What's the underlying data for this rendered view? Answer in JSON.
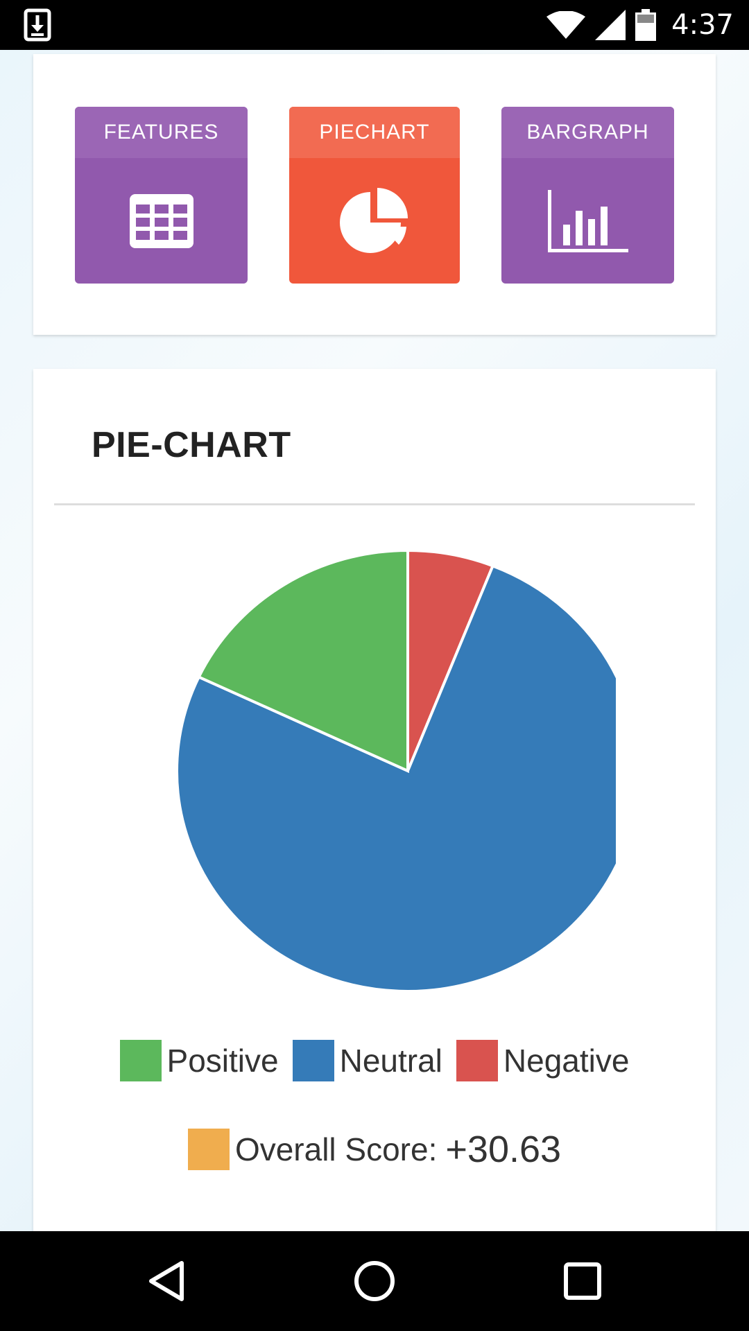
{
  "status_bar": {
    "time": "4:37",
    "icons": [
      "download-icon",
      "wifi-icon",
      "cell-signal-icon",
      "battery-icon"
    ]
  },
  "nav_tiles": [
    {
      "label": "FEATURES",
      "icon": "table-grid-icon",
      "color": "#9159ad",
      "header_color": "#9b66b5"
    },
    {
      "label": "PIECHART",
      "icon": "pie-chart-icon",
      "color": "#f0573b",
      "header_color": "#f26b52"
    },
    {
      "label": "BARGRAPH",
      "icon": "bar-graph-icon",
      "color": "#9159ad",
      "header_color": "#9b66b5"
    }
  ],
  "pie_card": {
    "title": "PIE-CHART"
  },
  "chart_data": {
    "type": "pie",
    "slices": [
      {
        "name": "Negative",
        "value": 6,
        "color": "#d9534f"
      },
      {
        "name": "Neutral",
        "value": 76,
        "color": "#357bb8"
      },
      {
        "name": "Positive",
        "value": 18,
        "color": "#5cb85c"
      }
    ],
    "legend": [
      "Positive",
      "Neutral",
      "Negative"
    ],
    "legend_placement": "bottom"
  },
  "legend": {
    "positive": {
      "label": "Positive",
      "color": "#5cb85c"
    },
    "neutral": {
      "label": "Neutral",
      "color": "#357bb8"
    },
    "negative": {
      "label": "Negative",
      "color": "#d9534f"
    }
  },
  "score": {
    "label": "Overall Score:",
    "value": "+30.63",
    "color": "#f0ad4e"
  },
  "nav_bar": {
    "buttons": [
      "back-icon",
      "home-icon",
      "recents-icon"
    ]
  }
}
